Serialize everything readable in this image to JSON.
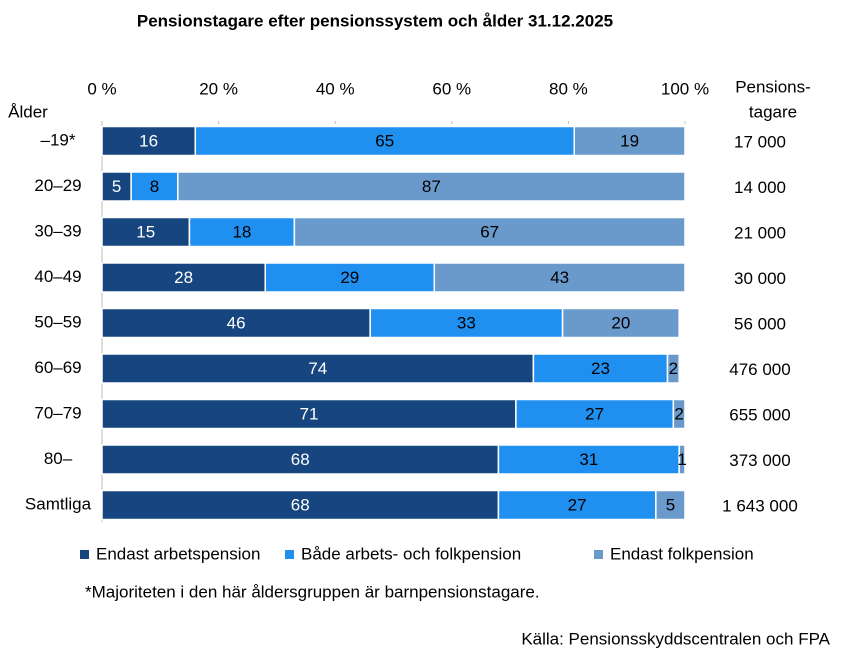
{
  "chart_data": {
    "type": "bar",
    "orientation": "horizontal",
    "stacked": true,
    "title": "Pensionstagare efter pensionssystem och ålder 31.12.2025",
    "y_label": "Ålder",
    "totals_label": [
      "Pensions-",
      "tagare"
    ],
    "categories": [
      "–19*",
      "20–29",
      "30–39",
      "40–49",
      "50–59",
      "60–69",
      "70–79",
      "80–",
      "Samtliga"
    ],
    "series": [
      {
        "name": "Endast arbetspension",
        "color": "#17457f",
        "label_color": "#ffffff",
        "values": [
          16,
          5,
          15,
          28,
          46,
          74,
          71,
          68,
          68
        ]
      },
      {
        "name": "Både arbets- och folkpension",
        "color": "#1f8ff0",
        "label_color": "#000000",
        "values": [
          65,
          8,
          18,
          29,
          33,
          23,
          27,
          31,
          27
        ]
      },
      {
        "name": "Endast folkpension",
        "color": "#6a9acb",
        "label_color": "#000000",
        "values": [
          19,
          87,
          67,
          43,
          20,
          2,
          2,
          1,
          5
        ]
      }
    ],
    "totals": [
      {
        "value": 17000,
        "label": "17 000"
      },
      {
        "value": 14000,
        "label": "14 000"
      },
      {
        "value": 21000,
        "label": "21 000"
      },
      {
        "value": 30000,
        "label": "30 000"
      },
      {
        "value": 56000,
        "label": "56 000"
      },
      {
        "value": 476000,
        "label": "476 000"
      },
      {
        "value": 655000,
        "label": "655 000"
      },
      {
        "value": 373000,
        "label": "373 000"
      },
      {
        "value": 1643000,
        "label": "1 643 000"
      }
    ],
    "xlim": [
      0,
      100
    ],
    "xticks": [
      {
        "value": 0,
        "label": "0 %"
      },
      {
        "value": 20,
        "label": "20 %"
      },
      {
        "value": 40,
        "label": "40 %"
      },
      {
        "value": 60,
        "label": "60 %"
      },
      {
        "value": 80,
        "label": "80 %"
      },
      {
        "value": 100,
        "label": "100 %"
      }
    ],
    "footnote": "*Majoriteten i den här åldersgruppen är barnpensionstagare.",
    "source": "Källa: Pensionsskyddscentralen och FPA"
  }
}
